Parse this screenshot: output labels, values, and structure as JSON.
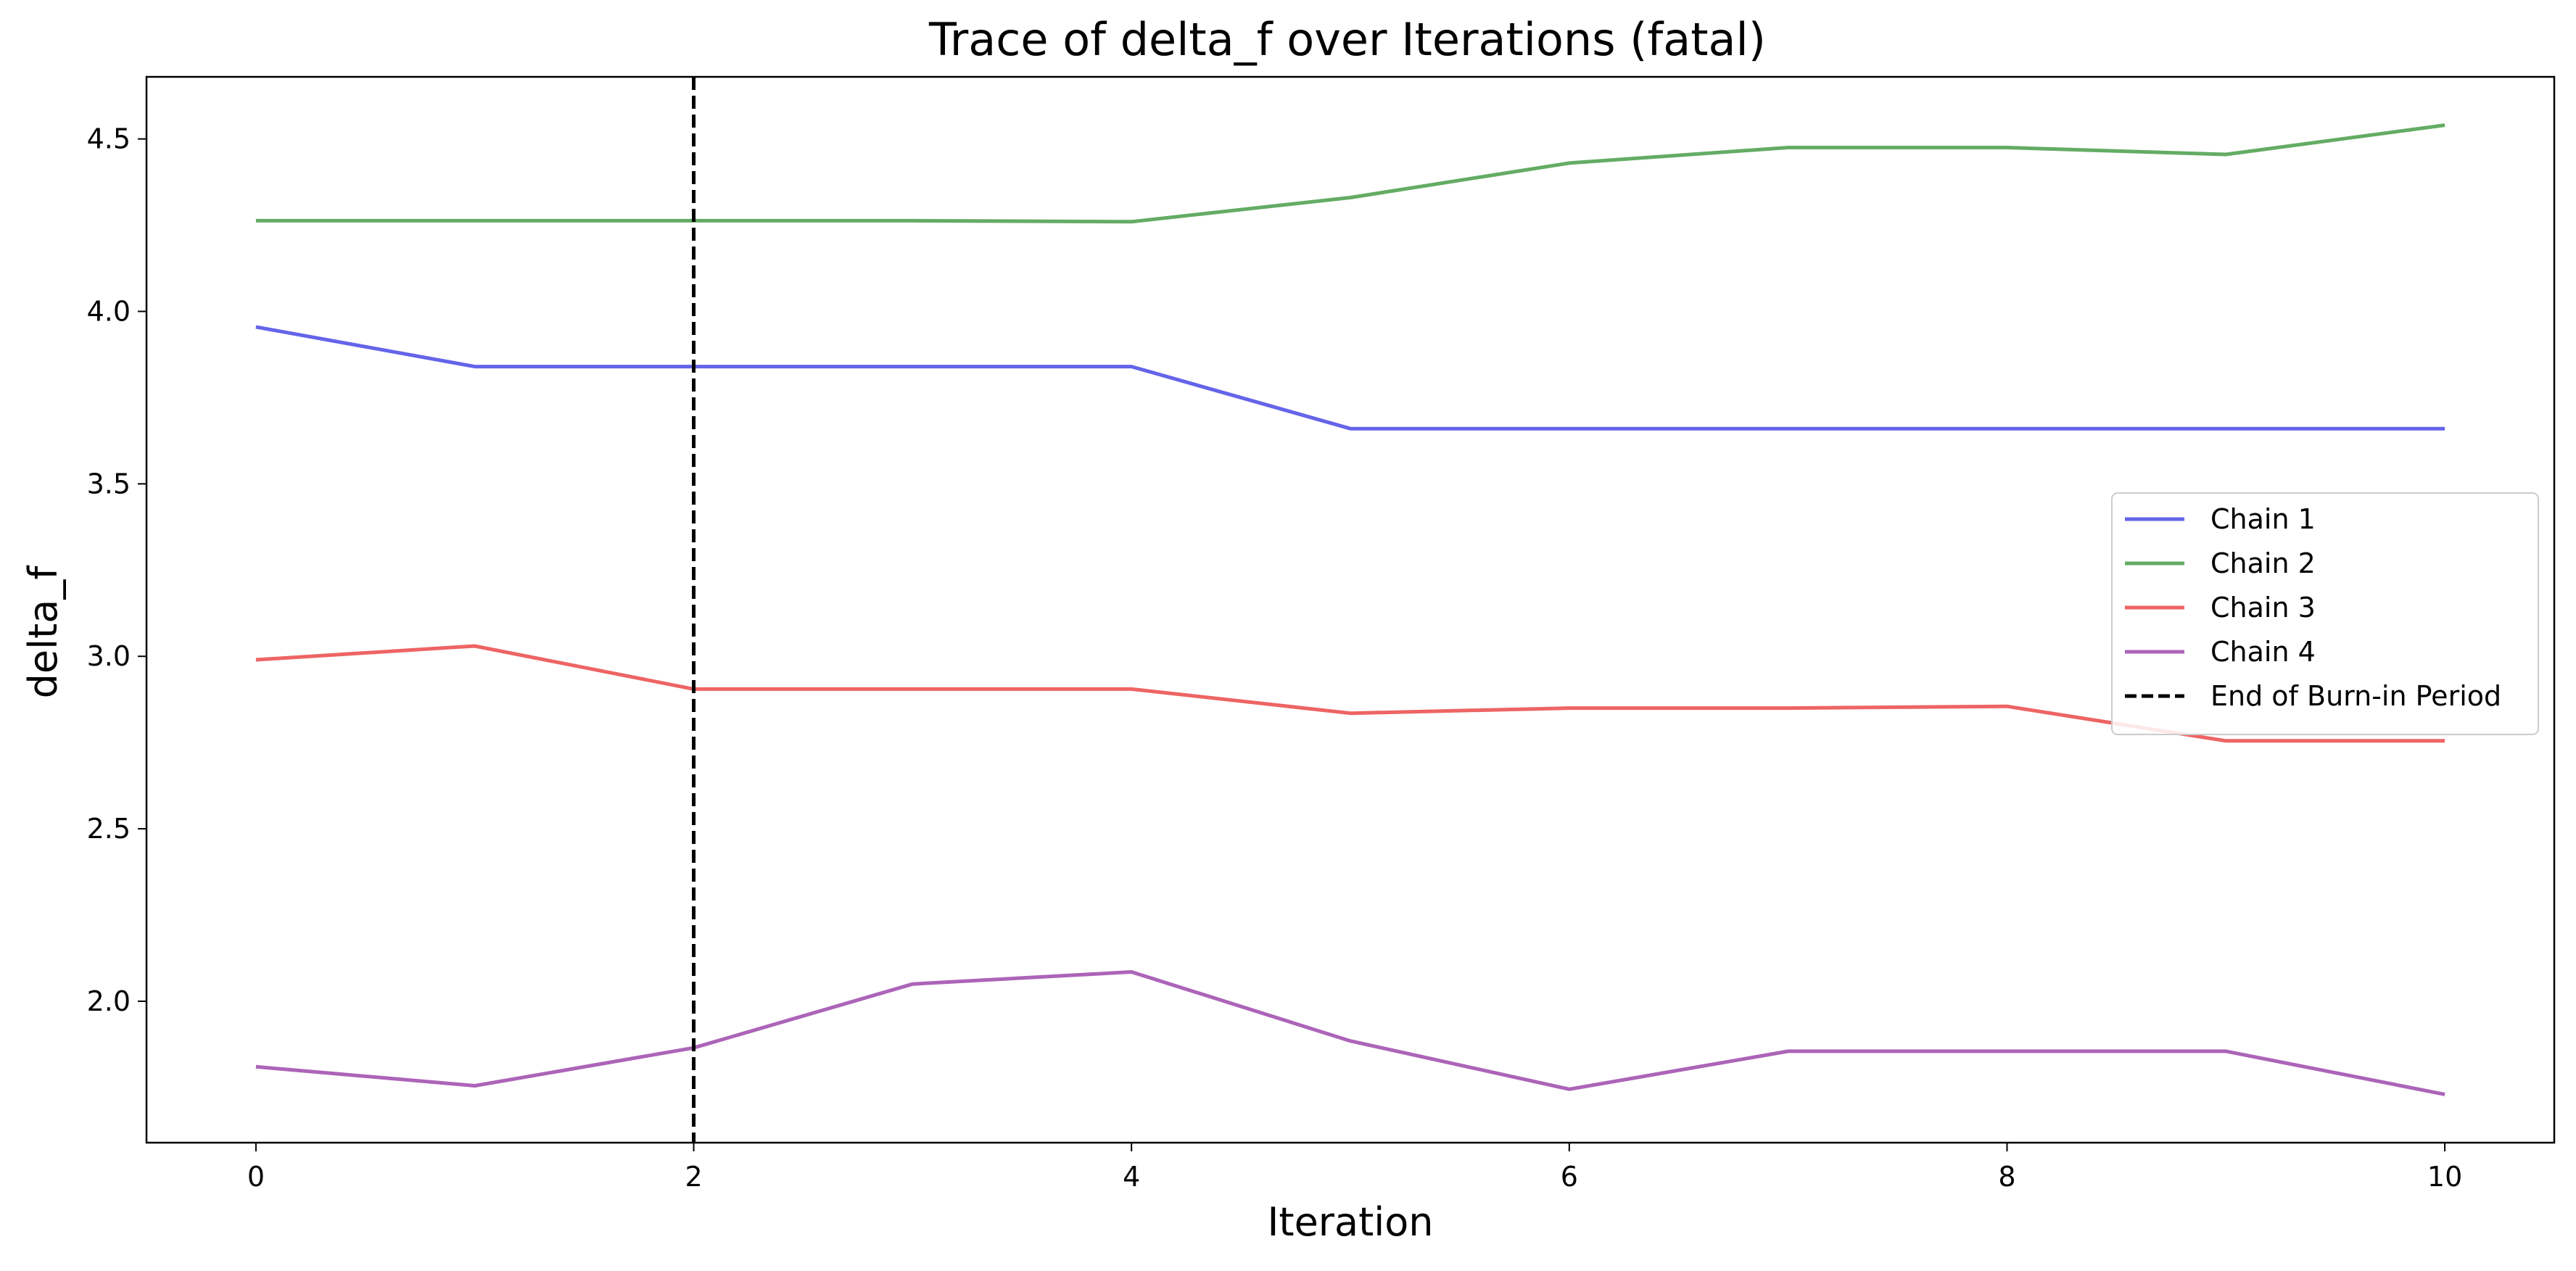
{
  "chart_data": {
    "type": "line",
    "title": "Trace of delta_f over Iterations (fatal)",
    "xlabel": "Iteration",
    "ylabel": "delta_f",
    "xlim": [
      -0.5,
      10.5
    ],
    "ylim": [
      1.59,
      4.68
    ],
    "xticks": [
      0,
      2,
      4,
      6,
      8,
      10
    ],
    "yticks": [
      2.0,
      2.5,
      3.0,
      3.5,
      4.0,
      4.5
    ],
    "grid": false,
    "legend_position": "center-right",
    "x": [
      0,
      1,
      2,
      3,
      4,
      5,
      6,
      7,
      8,
      9,
      10
    ],
    "series": [
      {
        "name": "Chain 1",
        "color": "#6464ea",
        "values": [
          3.955,
          3.84,
          3.84,
          3.84,
          3.84,
          3.66,
          3.66,
          3.66,
          3.66,
          3.66,
          3.66
        ]
      },
      {
        "name": "Chain 2",
        "color": "#64ac64",
        "values": [
          4.263,
          4.263,
          4.263,
          4.263,
          4.26,
          4.33,
          4.43,
          4.475,
          4.475,
          4.455,
          4.54
        ]
      },
      {
        "name": "Chain 3",
        "color": "#ee6464",
        "values": [
          2.99,
          3.03,
          2.905,
          2.905,
          2.905,
          2.835,
          2.85,
          2.85,
          2.855,
          2.755,
          2.755
        ]
      },
      {
        "name": "Chain 4",
        "color": "#ac64b8",
        "values": [
          1.81,
          1.755,
          1.865,
          2.05,
          2.085,
          1.885,
          1.745,
          1.855,
          1.855,
          1.855,
          1.73
        ]
      }
    ],
    "vlines": [
      {
        "name": "End of Burn-in Period",
        "x": 2,
        "color": "#000000",
        "style": "dashed"
      }
    ]
  }
}
